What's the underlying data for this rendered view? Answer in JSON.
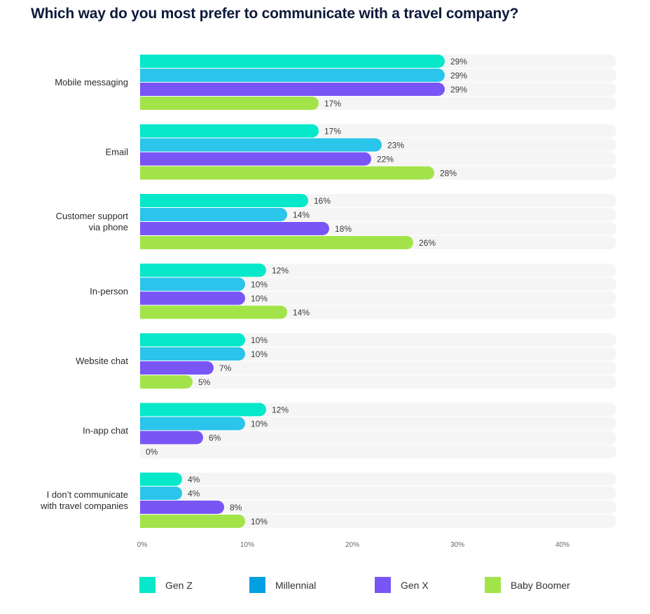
{
  "chart_data": {
    "type": "bar",
    "orientation": "horizontal",
    "title": "Which way do you most prefer to communicate with a travel company?",
    "xlabel": "",
    "ylabel": "",
    "xlim": [
      0,
      45
    ],
    "x_ticks": [
      0,
      10,
      20,
      30,
      40
    ],
    "x_tick_labels": [
      "0%",
      "10%",
      "20%",
      "30%",
      "40%"
    ],
    "grid": false,
    "legend_position": "bottom",
    "categories": [
      [
        "Mobile messaging"
      ],
      [
        "Email"
      ],
      [
        "Customer support",
        "via phone"
      ],
      [
        "In-person"
      ],
      [
        "Website chat"
      ],
      [
        "In-app chat"
      ],
      [
        "I don’t communicate",
        "with travel companies"
      ]
    ],
    "series": [
      {
        "name": "Gen Z",
        "color": "#06E8C9",
        "legend_color": "#06E8C9",
        "values": [
          29,
          17,
          16,
          12,
          10,
          12,
          4
        ]
      },
      {
        "name": "Millennial",
        "color": "#2BC4EA",
        "legend_color": "#00A0E2",
        "values": [
          29,
          23,
          14,
          10,
          10,
          10,
          4
        ]
      },
      {
        "name": "Gen X",
        "color": "#7A55F5",
        "legend_color": "#7A55F5",
        "values": [
          29,
          22,
          18,
          10,
          7,
          6,
          8
        ]
      },
      {
        "name": "Baby Boomer",
        "color": "#A3E34A",
        "legend_color": "#A3E34A",
        "values": [
          17,
          28,
          26,
          14,
          5,
          0,
          10
        ]
      }
    ],
    "value_suffix": "%",
    "track_color": "#F5F5F5"
  }
}
